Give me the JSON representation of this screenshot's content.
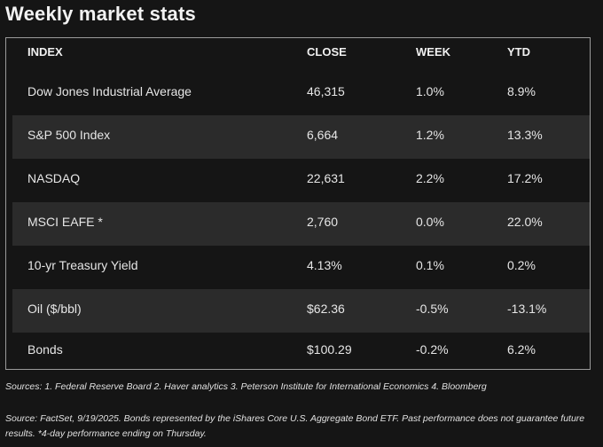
{
  "title": "Weekly market stats",
  "table": {
    "headers": [
      "INDEX",
      "CLOSE",
      "WEEK",
      "YTD"
    ],
    "rows": [
      [
        "Dow Jones Industrial Average",
        "46,315",
        "1.0%",
        "8.9%"
      ],
      [
        "S&P 500 Index",
        "6,664",
        "1.2%",
        "13.3%"
      ],
      [
        "NASDAQ",
        "22,631",
        "2.2%",
        "17.2%"
      ],
      [
        "MSCI EAFE *",
        "2,760",
        "0.0%",
        "22.0%"
      ],
      [
        "10-yr Treasury Yield",
        "4.13%",
        "0.1%",
        "0.2%"
      ],
      [
        "Oil ($/bbl)",
        "$62.36",
        "-0.5%",
        "-13.1%"
      ],
      [
        "Bonds",
        "$100.29",
        "-0.2%",
        "6.2%"
      ]
    ]
  },
  "notes": {
    "sources": "Sources: 1. Federal Reserve Board 2. Haver analytics 3. Peterson Institute for International Economics 4. Bloomberg",
    "disclaimer": "Source: FactSet, 9/19/2025. Bonds represented by the iShares Core U.S. Aggregate Bond ETF. Past performance does not guarantee future results. *4-day performance ending on Thursday."
  }
}
